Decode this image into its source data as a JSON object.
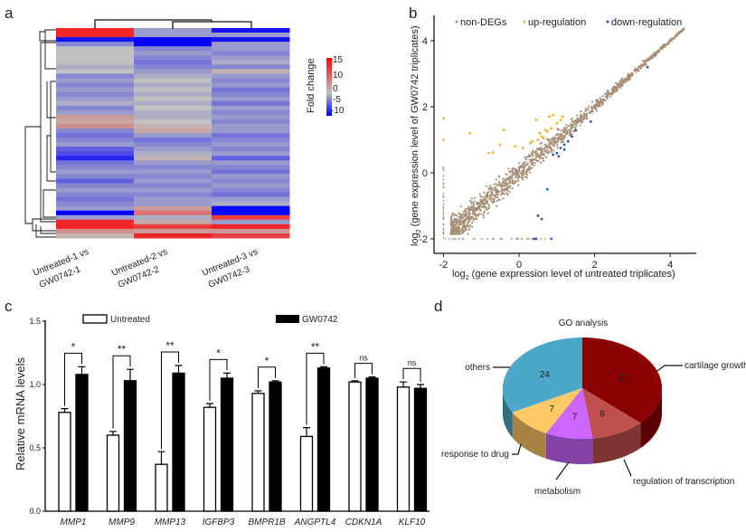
{
  "panels": {
    "a": "a",
    "b": "b",
    "c": "c",
    "d": "d"
  },
  "chart_data": [
    {
      "type": "heatmap",
      "columns": [
        "Untreated-1 vs GW0742-1",
        "Untreated-2 vs GW0742-2",
        "Untreated-3 vs GW0742-3"
      ],
      "column_label_lines": [
        [
          "Untreated-1 vs",
          "GW0742-1"
        ],
        [
          "Untreated-2 vs",
          "GW0742-2"
        ],
        [
          "Untreated-3 vs",
          "GW0742-3"
        ]
      ],
      "colorbar": {
        "title": "Fold change",
        "ticks": [
          "15",
          "10",
          "0",
          "-5",
          "-10"
        ],
        "range": [
          -10,
          15
        ],
        "colors": {
          "low": "#0000ff",
          "mid": "#c0c0c0",
          "high": "#ff0000"
        }
      },
      "rows": [
        [
          12,
          -2,
          -9
        ],
        [
          12,
          -2,
          -2
        ],
        [
          -9,
          -12,
          -9
        ],
        [
          -3,
          -12,
          -2
        ],
        [
          0,
          -3,
          -2
        ],
        [
          0,
          -2,
          -3
        ],
        [
          0,
          -3,
          -2
        ],
        [
          0,
          -4,
          -1
        ],
        [
          -1,
          -3,
          -3
        ],
        [
          0,
          -2,
          1
        ],
        [
          -3,
          -1,
          -2
        ],
        [
          -2,
          0,
          -3
        ],
        [
          -3,
          -1,
          -2
        ],
        [
          -2,
          0,
          -4
        ],
        [
          -3,
          -1,
          -3
        ],
        [
          -2,
          0,
          -2
        ],
        [
          -1,
          -1,
          -4
        ],
        [
          -3,
          0,
          -2
        ],
        [
          -2,
          -1,
          -3
        ],
        [
          3,
          -1,
          -2
        ],
        [
          2,
          0,
          -3
        ],
        [
          4,
          1,
          -2
        ],
        [
          -3,
          2,
          -2
        ],
        [
          -4,
          -2,
          -4
        ],
        [
          -3,
          -4,
          -3
        ],
        [
          -2,
          -3,
          -2
        ],
        [
          -5,
          -2,
          -3
        ],
        [
          -6,
          -1,
          -2
        ],
        [
          -8,
          1,
          -5
        ],
        [
          -4,
          -2,
          -2
        ],
        [
          -3,
          -3,
          -3
        ],
        [
          -2,
          -2,
          -4
        ],
        [
          -3,
          -3,
          -2
        ],
        [
          -5,
          -2,
          -3
        ],
        [
          -3,
          -3,
          -2
        ],
        [
          -2,
          -2,
          -3
        ],
        [
          -3,
          -3,
          -4
        ],
        [
          -4,
          -2,
          -2
        ],
        [
          -3,
          -2,
          -1
        ],
        [
          -2,
          3,
          -12
        ],
        [
          -12,
          6,
          -12
        ],
        [
          -2,
          -1,
          10
        ],
        [
          12,
          2,
          -2
        ],
        [
          12,
          10,
          12
        ],
        [
          4,
          3,
          3
        ],
        [
          1,
          12,
          10
        ]
      ]
    },
    {
      "type": "scatter",
      "xlabel": "log2 (gene expression level of untreated triplicates)",
      "ylabel": "log2 (gene expression level of GW0742 triplicates)",
      "xlabel_parts": {
        "pre": "log",
        "sub": "2",
        "post": " (gene expression level of untreated triplicates)"
      },
      "ylabel_parts": {
        "pre": "log",
        "sub": "2",
        "post": " (gene expression level of GW0742 triplicates)"
      },
      "xlim": [
        -2.3,
        4.7
      ],
      "ylim": [
        -2.4,
        4.7
      ],
      "xticks": [
        "-2",
        "0",
        "2",
        "4"
      ],
      "yticks": [
        "-2",
        "0",
        "2",
        "4"
      ],
      "legend": {
        "placement": "top",
        "entries": [
          {
            "name": "non-DEGs",
            "color": "#a89078"
          },
          {
            "name": "up-regulation",
            "color": "#f0b020"
          },
          {
            "name": "down-regulation",
            "color": "#3050c0"
          }
        ]
      },
      "series": [
        {
          "name": "up-regulation",
          "color": "#f0b020",
          "points": [
            [
              -2,
              1.65
            ],
            [
              -2,
              1.0
            ],
            [
              -1.3,
              1.2
            ],
            [
              -0.7,
              0.62
            ],
            [
              -0.8,
              0.6
            ],
            [
              -0.5,
              0.85
            ],
            [
              -0.4,
              1.3
            ],
            [
              -0.1,
              0.8
            ],
            [
              0.1,
              0.75
            ],
            [
              0.3,
              0.9
            ],
            [
              0.45,
              1.6
            ],
            [
              0.5,
              1.0
            ],
            [
              0.6,
              1.1
            ],
            [
              0.7,
              1.3
            ],
            [
              0.8,
              1.7
            ],
            [
              0.9,
              1.75
            ],
            [
              1.0,
              1.5
            ],
            [
              1.1,
              1.6
            ],
            [
              0.35,
              0.95
            ],
            [
              0.55,
              1.2
            ],
            [
              0.75,
              1.25
            ],
            [
              0.65,
              1.05
            ],
            [
              0.85,
              1.35
            ],
            [
              1.15,
              1.7
            ]
          ]
        },
        {
          "name": "down-regulation",
          "color": "#3050c0",
          "points": [
            [
              0.9,
              0.55
            ],
            [
              1.0,
              0.6
            ],
            [
              1.1,
              0.75
            ],
            [
              1.2,
              0.85
            ],
            [
              1.3,
              0.95
            ],
            [
              1.5,
              1.3
            ],
            [
              1.9,
              1.55
            ],
            [
              0.75,
              -0.5
            ],
            [
              0.6,
              -1.4
            ],
            [
              0.5,
              -1.3
            ],
            [
              0.45,
              -2
            ],
            [
              0.4,
              -2
            ],
            [
              0.85,
              -2
            ],
            [
              1.2,
              0.7
            ],
            [
              3.4,
              3.2
            ],
            [
              1.05,
              0.5
            ],
            [
              1.4,
              1.1
            ]
          ]
        }
      ]
    },
    {
      "type": "bar",
      "ylabel": "Relative mRNA levels",
      "ylim": [
        0,
        1.5
      ],
      "yticks": [
        "0.0",
        "0.5",
        "1.0",
        "1.5"
      ],
      "categories": [
        "MMP1",
        "MMP9",
        "MMP13",
        "IGFBP3",
        "BMPR1B",
        "ANGPTL4",
        "CDKN1A",
        "KLF10"
      ],
      "series": [
        {
          "name": "Untreated",
          "color": "#ffffff",
          "values": [
            0.78,
            0.6,
            0.37,
            0.82,
            0.93,
            0.59,
            1.02,
            0.98
          ],
          "errors": [
            0.03,
            0.03,
            0.1,
            0.03,
            0.02,
            0.07,
            0.01,
            0.04
          ]
        },
        {
          "name": "GW0742",
          "color": "#000000",
          "values": [
            1.08,
            1.03,
            1.09,
            1.05,
            1.02,
            1.13,
            1.05,
            0.97
          ],
          "errors": [
            0.06,
            0.09,
            0.06,
            0.04,
            0.01,
            0.01,
            0.01,
            0.03
          ]
        }
      ],
      "significance": [
        "*",
        "**",
        "**",
        "*",
        "*",
        "**",
        "ns",
        "ns"
      ],
      "legend": {
        "placement": "top"
      }
    },
    {
      "type": "pie",
      "title": "GO analysis",
      "style": "3d",
      "slices": [
        {
          "label": "cartilage growth",
          "value": 27,
          "color": "#8b0000"
        },
        {
          "label": "regulation of transcription",
          "value": 8,
          "color": "#c0504d"
        },
        {
          "label": "metabolism",
          "value": 7,
          "color": "#cc66ff"
        },
        {
          "label": "response to drug",
          "value": 7,
          "color": "#ffc966"
        },
        {
          "label": "others",
          "value": 24,
          "color": "#4aa8c8"
        }
      ]
    }
  ]
}
